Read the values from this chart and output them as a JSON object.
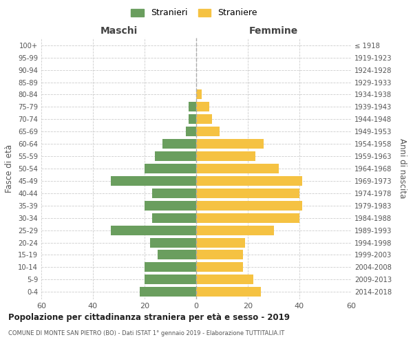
{
  "age_groups": [
    "0-4",
    "5-9",
    "10-14",
    "15-19",
    "20-24",
    "25-29",
    "30-34",
    "35-39",
    "40-44",
    "45-49",
    "50-54",
    "55-59",
    "60-64",
    "65-69",
    "70-74",
    "75-79",
    "80-84",
    "85-89",
    "90-94",
    "95-99",
    "100+"
  ],
  "birth_years": [
    "2014-2018",
    "2009-2013",
    "2004-2008",
    "1999-2003",
    "1994-1998",
    "1989-1993",
    "1984-1988",
    "1979-1983",
    "1974-1978",
    "1969-1973",
    "1964-1968",
    "1959-1963",
    "1954-1958",
    "1949-1953",
    "1944-1948",
    "1939-1943",
    "1934-1938",
    "1929-1933",
    "1924-1928",
    "1919-1923",
    "≤ 1918"
  ],
  "maschi": [
    22,
    20,
    20,
    15,
    18,
    33,
    17,
    20,
    17,
    33,
    20,
    16,
    13,
    4,
    3,
    3,
    0,
    0,
    0,
    0,
    0
  ],
  "femmine": [
    25,
    22,
    18,
    18,
    19,
    30,
    40,
    41,
    40,
    41,
    32,
    23,
    26,
    9,
    6,
    5,
    2,
    0,
    0,
    0,
    0
  ],
  "color_maschi": "#6a9e5e",
  "color_femmine": "#f5c242",
  "grid_color": "#cccccc",
  "center_line_color": "#aaaaaa",
  "title_main": "Popolazione per cittadinanza straniera per età e sesso - 2019",
  "title_sub": "COMUNE DI MONTE SAN PIETRO (BO) - Dati ISTAT 1° gennaio 2019 - Elaborazione TUTTITALIA.IT",
  "xlabel_left": "Maschi",
  "xlabel_right": "Femmine",
  "ylabel_left": "Fasce di età",
  "ylabel_right": "Anni di nascita",
  "legend_maschi": "Stranieri",
  "legend_femmine": "Straniere",
  "xlim": 60,
  "xtick_positions": [
    -60,
    -40,
    -20,
    0,
    20,
    40,
    60
  ],
  "xtick_labels": [
    "60",
    "40",
    "20",
    "0",
    "20",
    "40",
    "60"
  ]
}
